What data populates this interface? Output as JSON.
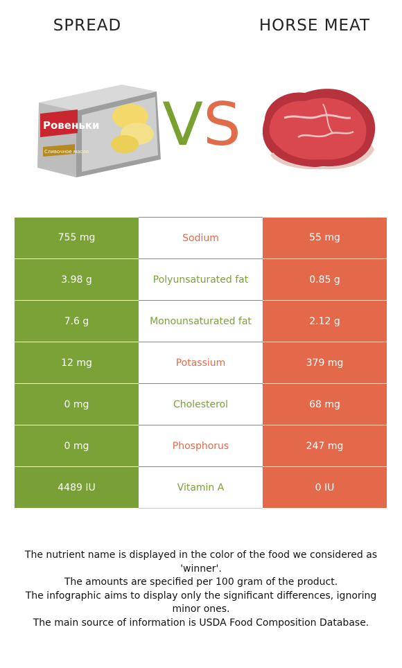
{
  "left_food": {
    "title": "SPREAD",
    "image_icon": "butter-package-image",
    "package_brand_text": "Ровеньки",
    "package_product_text": "Сливочное масло",
    "color": "#7aa236"
  },
  "right_food": {
    "title": "HORSE MEAT",
    "image_icon": "raw-meat-image",
    "color": "#e4694a"
  },
  "vs": {
    "v": "V",
    "s": "S"
  },
  "rows": [
    {
      "nutrient": "Sodium",
      "left": "755 mg",
      "right": "55 mg",
      "winner": "right"
    },
    {
      "nutrient": "Polyunsaturated fat",
      "left": "3.98 g",
      "right": "0.85 g",
      "winner": "left"
    },
    {
      "nutrient": "Monounsaturated fat",
      "left": "7.6 g",
      "right": "2.12 g",
      "winner": "left"
    },
    {
      "nutrient": "Potassium",
      "left": "12 mg",
      "right": "379 mg",
      "winner": "right"
    },
    {
      "nutrient": "Cholesterol",
      "left": "0 mg",
      "right": "68 mg",
      "winner": "left"
    },
    {
      "nutrient": "Phosphorus",
      "left": "0 mg",
      "right": "247 mg",
      "winner": "right"
    },
    {
      "nutrient": "Vitamin A",
      "left": "4489 IU",
      "right": "0 IU",
      "winner": "left"
    }
  ],
  "notes": [
    "The nutrient name is displayed in the color of the food we considered as 'winner'.",
    "The amounts are specified per 100 gram of the product.",
    "The infographic aims to display only the significant differences, ignoring minor ones.",
    "The main source of information is USDA Food Composition Database."
  ]
}
